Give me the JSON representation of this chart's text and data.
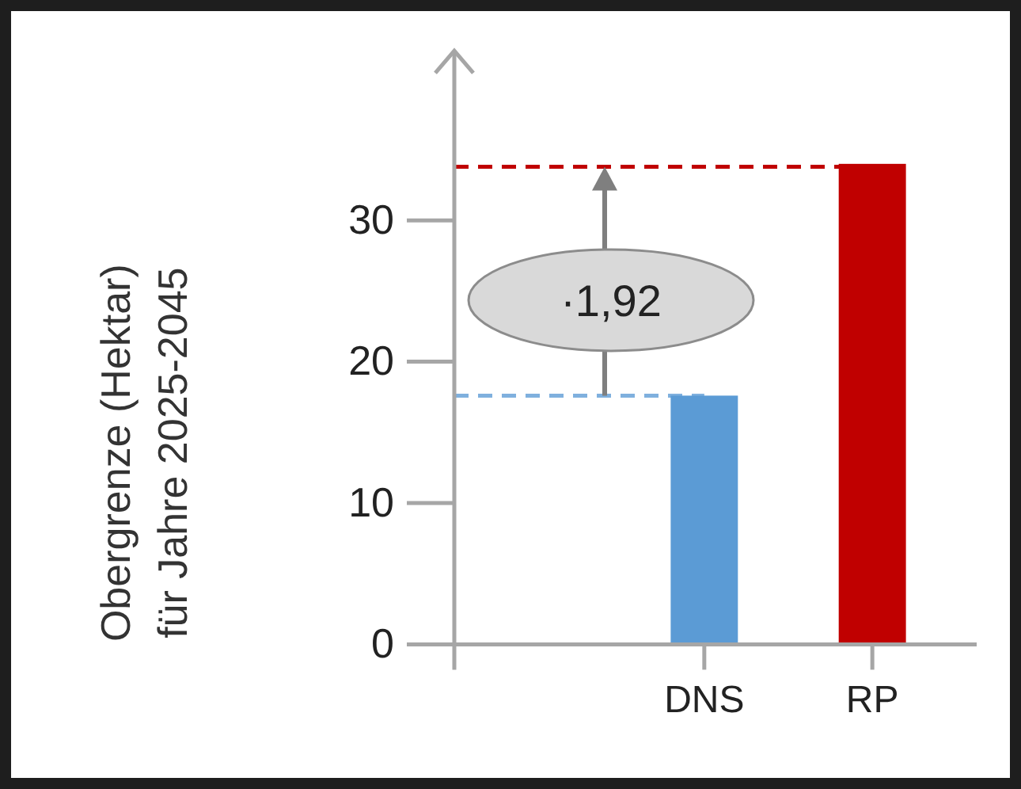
{
  "chart_data": {
    "type": "bar",
    "ylabel": "Obergrenze (Hektar)\nfür Jahre 2025-2045",
    "categories": [
      "DNS",
      "RP"
    ],
    "values": [
      17.6,
      34.0
    ],
    "colors": [
      "#5b9bd5",
      "#c00000"
    ],
    "ylim": [
      0,
      42
    ],
    "yticks": [
      0,
      10,
      20,
      30
    ],
    "grid": false,
    "ref_lines": [
      {
        "axis": "y",
        "value": 17.6,
        "color": "#7fb0de",
        "line_style": "dashed"
      },
      {
        "axis": "y",
        "value": 33.8,
        "color": "#c00000",
        "line_style": "dashed"
      }
    ],
    "annotations": [
      "·1,92"
    ]
  }
}
